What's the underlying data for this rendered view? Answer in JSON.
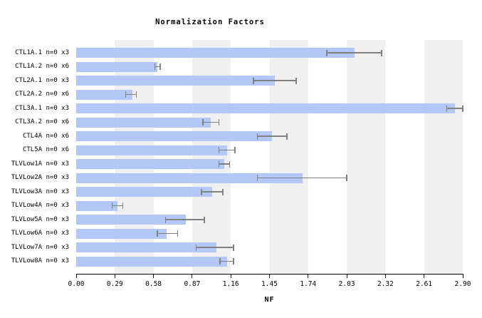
{
  "chart_data": {
    "type": "bar",
    "orientation": "horizontal",
    "title": "Normalization Factors",
    "xlabel": "NF",
    "xlim": [
      0,
      2.9
    ],
    "xtick_labels": [
      "0.00",
      "0.29",
      "0.58",
      "0.87",
      "1.16",
      "1.45",
      "1.74",
      "2.03",
      "2.32",
      "2.61",
      "2.90"
    ],
    "grid": "alternating-vertical-stripes",
    "legend": "none",
    "categories": [
      "CTL1A.1 n=0 x3",
      "CTL1A.2 n=0 x6",
      "CTL2A.1 n=0 x3",
      "CTL2A.2 n=0 x6",
      "CTL3A.1 n=0 x3",
      "CTL3A.2 n=0 x6",
      "CTL4A n=0 x6",
      "CTL5A n=0 x6",
      "TLVLow1A n=0 x3",
      "TLVLow2A n=0 x3",
      "TLVLow3A n=0 x3",
      "TLVLow4A n=0 x3",
      "TLVLow5A n=0 x3",
      "TLVLow6A n=0 x3",
      "TLVLow7A n=0 x3",
      "TLVLow8A n=0 x3"
    ],
    "values": [
      2.09,
      0.61,
      1.49,
      0.42,
      2.84,
      1.01,
      1.47,
      1.13,
      1.11,
      1.7,
      1.02,
      0.31,
      0.82,
      0.68,
      1.05,
      1.13
    ],
    "whisker_low": [
      1.88,
      0.59,
      1.33,
      0.37,
      2.78,
      0.95,
      1.36,
      1.07,
      1.07,
      1.36,
      0.94,
      0.27,
      0.67,
      0.61,
      0.9,
      1.08
    ],
    "whisker_high": [
      2.29,
      0.63,
      1.65,
      0.45,
      2.9,
      1.07,
      1.58,
      1.19,
      1.15,
      2.03,
      1.1,
      0.35,
      0.96,
      0.76,
      1.18,
      1.18
    ],
    "colors": {
      "bar": "#b3c8f7",
      "error_bar": "#808080",
      "stripe": "#f0f0f0",
      "axis": "#000000",
      "text": "#000000",
      "background": "#ffffff"
    }
  }
}
